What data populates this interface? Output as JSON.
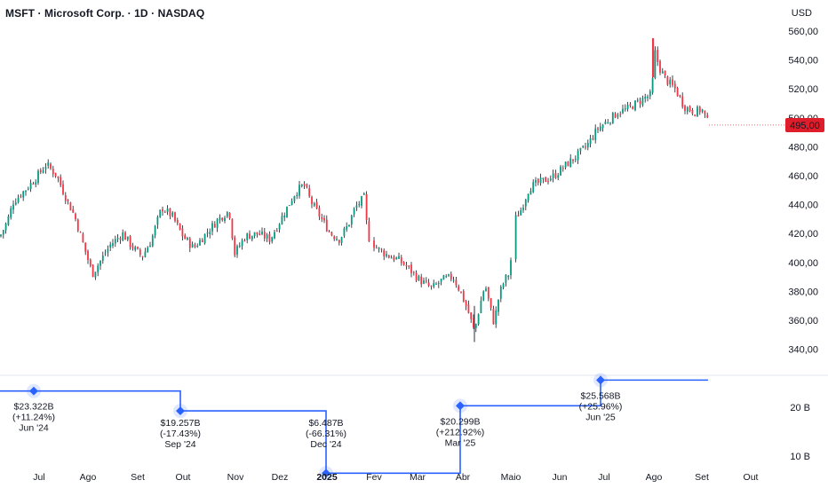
{
  "header": {
    "title": "MSFT · Microsoft Corp. · 1D · NASDAQ",
    "currency": "USD"
  },
  "colors": {
    "up": "#089981",
    "down": "#f23645",
    "wick": "#131722",
    "step_line": "#2962ff",
    "price_badge": "#e01e2b"
  },
  "chart_data": [
    {
      "type": "candlestick",
      "title": "MSFT · Microsoft Corp. · 1D · NASDAQ",
      "ylabel": "USD",
      "ylim": [
        328,
        563
      ],
      "y_ticks": [
        "560,00",
        "540,00",
        "520,00",
        "500,00",
        "480,00",
        "460,00",
        "440,00",
        "420,00",
        "400,00",
        "380,00",
        "360,00",
        "340,00"
      ],
      "y_tick_values": [
        560,
        540,
        520,
        500,
        480,
        460,
        440,
        420,
        400,
        380,
        360,
        340
      ],
      "x_tick_labels": [
        "Jul",
        "Ago",
        "Set",
        "Out",
        "Nov",
        "Dez",
        "2025",
        "Fev",
        "Mar",
        "Abr",
        "Maio",
        "Jun",
        "Jul",
        "Ago",
        "Set",
        "Out"
      ],
      "last_price": 495.0,
      "last_price_label": "495,00",
      "price_path": [
        {
          "x": 0,
          "p": 418
        },
        {
          "x": 8,
          "p": 428
        },
        {
          "x": 15,
          "p": 442
        },
        {
          "x": 28,
          "p": 450
        },
        {
          "x": 40,
          "p": 458
        },
        {
          "x": 52,
          "p": 468
        },
        {
          "x": 64,
          "p": 460
        },
        {
          "x": 74,
          "p": 445
        },
        {
          "x": 84,
          "p": 432
        },
        {
          "x": 96,
          "p": 408
        },
        {
          "x": 104,
          "p": 392
        },
        {
          "x": 112,
          "p": 400
        },
        {
          "x": 124,
          "p": 412
        },
        {
          "x": 138,
          "p": 420
        },
        {
          "x": 150,
          "p": 410
        },
        {
          "x": 160,
          "p": 404
        },
        {
          "x": 170,
          "p": 415
        },
        {
          "x": 182,
          "p": 438
        },
        {
          "x": 194,
          "p": 432
        },
        {
          "x": 206,
          "p": 418
        },
        {
          "x": 218,
          "p": 410
        },
        {
          "x": 232,
          "p": 420
        },
        {
          "x": 246,
          "p": 430
        },
        {
          "x": 258,
          "p": 436
        },
        {
          "x": 264,
          "p": 406
        },
        {
          "x": 276,
          "p": 418
        },
        {
          "x": 290,
          "p": 420
        },
        {
          "x": 304,
          "p": 416
        },
        {
          "x": 318,
          "p": 432
        },
        {
          "x": 332,
          "p": 448
        },
        {
          "x": 342,
          "p": 454
        },
        {
          "x": 350,
          "p": 442
        },
        {
          "x": 362,
          "p": 430
        },
        {
          "x": 372,
          "p": 420
        },
        {
          "x": 382,
          "p": 416
        },
        {
          "x": 392,
          "p": 426
        },
        {
          "x": 400,
          "p": 438
        },
        {
          "x": 410,
          "p": 445
        },
        {
          "x": 414,
          "p": 418
        },
        {
          "x": 424,
          "p": 410
        },
        {
          "x": 436,
          "p": 405
        },
        {
          "x": 448,
          "p": 402
        },
        {
          "x": 460,
          "p": 396
        },
        {
          "x": 472,
          "p": 388
        },
        {
          "x": 486,
          "p": 382
        },
        {
          "x": 498,
          "p": 388
        },
        {
          "x": 510,
          "p": 390
        },
        {
          "x": 518,
          "p": 380
        },
        {
          "x": 526,
          "p": 368
        },
        {
          "x": 534,
          "p": 352
        },
        {
          "x": 540,
          "p": 370
        },
        {
          "x": 546,
          "p": 385
        },
        {
          "x": 552,
          "p": 368
        },
        {
          "x": 556,
          "p": 358
        },
        {
          "x": 562,
          "p": 378
        },
        {
          "x": 568,
          "p": 388
        },
        {
          "x": 574,
          "p": 393
        },
        {
          "x": 578,
          "p": 428
        },
        {
          "x": 586,
          "p": 436
        },
        {
          "x": 596,
          "p": 452
        },
        {
          "x": 610,
          "p": 456
        },
        {
          "x": 624,
          "p": 460
        },
        {
          "x": 638,
          "p": 468
        },
        {
          "x": 650,
          "p": 474
        },
        {
          "x": 662,
          "p": 482
        },
        {
          "x": 672,
          "p": 492
        },
        {
          "x": 684,
          "p": 498
        },
        {
          "x": 696,
          "p": 504
        },
        {
          "x": 706,
          "p": 506
        },
        {
          "x": 716,
          "p": 510
        },
        {
          "x": 726,
          "p": 514
        },
        {
          "x": 734,
          "p": 516
        },
        {
          "x": 736,
          "p": 548
        },
        {
          "x": 742,
          "p": 535
        },
        {
          "x": 750,
          "p": 526
        },
        {
          "x": 760,
          "p": 520
        },
        {
          "x": 770,
          "p": 508
        },
        {
          "x": 782,
          "p": 504
        },
        {
          "x": 790,
          "p": 506
        },
        {
          "x": 798,
          "p": 495
        }
      ]
    },
    {
      "type": "step",
      "ylim": [
        5,
        29
      ],
      "y_ticks": [
        "20 B",
        "10 B"
      ],
      "y_tick_values": [
        20,
        10
      ],
      "series": [
        {
          "points": [
            {
              "date": "Jun '24",
              "value": 23.322,
              "value_label": "$23.322B",
              "change_label": "(+11.24%)"
            },
            {
              "date": "Sep '24",
              "value": 19.257,
              "value_label": "$19.257B",
              "change_label": "(-17.43%)"
            },
            {
              "date": "Dec '24",
              "value": 6.487,
              "value_label": "$6.487B",
              "change_label": "(-66.31%)"
            },
            {
              "date": "Mar '25",
              "value": 20.299,
              "value_label": "$20.299B",
              "change_label": "(+212.92%)"
            },
            {
              "date": "Jun '25",
              "value": 25.568,
              "value_label": "$25.568B",
              "change_label": "(+25.96%)"
            }
          ]
        }
      ]
    }
  ]
}
